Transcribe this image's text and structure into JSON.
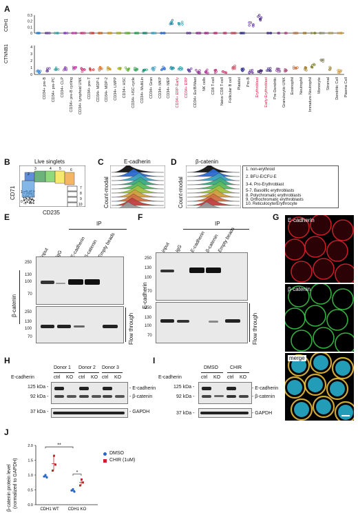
{
  "panel_labels": {
    "a": "A",
    "b": "B",
    "c": "C",
    "d": "D",
    "e": "E",
    "f": "F",
    "g": "G",
    "h": "H",
    "i": "I",
    "j": "J"
  },
  "panelA": {
    "row1_label": "CDH1",
    "row2_label": "CTNNB1",
    "y1_ticks": [
      "0.3",
      "0.2",
      "0.1",
      "0"
    ],
    "y2_ticks": [
      "4",
      "3",
      "2",
      "1",
      "0"
    ],
    "categories": [
      "CD34+ pre-B",
      "CD34+ pre-PC",
      "CD34+ CLP",
      "CD34+ pre-B cycling",
      "CD34+ lymphoid UNK",
      "CD34+ pre-T",
      "CD34+ MDP-1",
      "CD34+ MDP-2",
      "CD34+ LMPP",
      "CD34+ HSC",
      "CD34+ HSC-cycle",
      "CD34+ MultiLin",
      "CD34+ Gran",
      "CD34+ MKP",
      "CD34+ MEP",
      "CD34+ ERP-Early",
      "CD34+ ERP",
      "CD34+ Eo/B/Mast",
      "NK cells",
      "CD8 T-cell",
      "Naive CD8 T-cell",
      "Follicular B cell",
      "Platelet",
      "Pro-B",
      "Erythroblast",
      "Early-Erythroblast",
      "Pre-Dendritic",
      "Granulocytic-UNK",
      "Eosinophil",
      "Neutrophil",
      "Immature-Neutrophil",
      "Monocyte",
      "Stromal",
      "Dendritic Cell",
      "Plasma Cell"
    ],
    "highlight_categories": [
      "CD34+ ERP-Early",
      "CD34+ ERP",
      "Erythroblast",
      "Early-Erythroblast"
    ],
    "highlight_color": "#d6204a"
  },
  "panelB": {
    "title": "Live singlets",
    "xlabel": "CD235",
    "ylabel": "CD71",
    "gates": [
      "1",
      "2",
      "3",
      "4",
      "5",
      "6",
      "7",
      "8",
      "9",
      "10"
    ]
  },
  "panelC": {
    "title": "E-cadherin",
    "ylabel": "Count-modal"
  },
  "panelD": {
    "title": "β-catenin",
    "ylabel": "Count-modal"
  },
  "legendCD": [
    "1. non-erythroid",
    "2. BFU-E/CFU-E",
    "3-4. Pro-Erythroblast",
    "5-7. Basolific erythroblasts",
    "8. Polychromatic erythroblasts",
    "9. Orthochromatic erythroblasts",
    "10. Reticulocyte/Erythrocyte"
  ],
  "panelE": {
    "ip": "IP",
    "lanes": [
      "input",
      "IgG",
      "E-cadherin",
      "β-catenin",
      "Empty beads"
    ],
    "ylabel": "β-catenin",
    "mw": [
      "250",
      "130",
      "100",
      "70"
    ],
    "mw2": [
      "250",
      "130",
      "100",
      "70"
    ],
    "flow": "Flow through"
  },
  "panelF": {
    "ip": "IP",
    "lanes": [
      "input",
      "IgG",
      "E-cadherin",
      "β-catenin",
      "Empty beads"
    ],
    "ylabel": "E-cadherin",
    "mw": [
      "250",
      "130",
      "100",
      "70"
    ],
    "mw2": [
      "250",
      "130",
      "100",
      "70"
    ],
    "flow": "Flow through"
  },
  "panelG": {
    "top": "E-cadherin",
    "mid": "β-catenin",
    "bot": "merge"
  },
  "panelH": {
    "rowlabel": "E-cadherin",
    "donors": [
      "Donor 1",
      "Donor 2",
      "Donor 3"
    ],
    "ctrl": "ctrl",
    "ko": "KO",
    "mw": [
      "125 kDa -",
      "92 kDa -",
      "37 kDa -"
    ],
    "bands": [
      "- E-cadherin",
      "- β-catenin",
      "- GAPDH"
    ]
  },
  "panelI": {
    "rowlabel": "E-cadherin",
    "groups": [
      "DMSO",
      "CHIR"
    ],
    "ctrl": "ctrl",
    "ko": "KO",
    "mw": [
      "125 kDa -",
      "92 kDa -",
      "37 kDa -"
    ],
    "bands": [
      "- E-cadherin",
      "- β-catenin",
      "- GAPDH"
    ]
  },
  "panelJ": {
    "ylabel": "β-catenin protein level",
    "ylabel2": "(normalized to GAPDH)",
    "yticks": [
      "2.0",
      "1.5",
      "1.0",
      "0.5",
      "0.0"
    ],
    "xcats": [
      "CDH1 WT",
      "CDH1 KO"
    ],
    "legend": [
      "DMSO",
      "CHIR (1uM)"
    ],
    "sig": [
      "**",
      "*"
    ],
    "colors": {
      "dmso": "#2a66c8",
      "chir": "#c8232b"
    }
  }
}
